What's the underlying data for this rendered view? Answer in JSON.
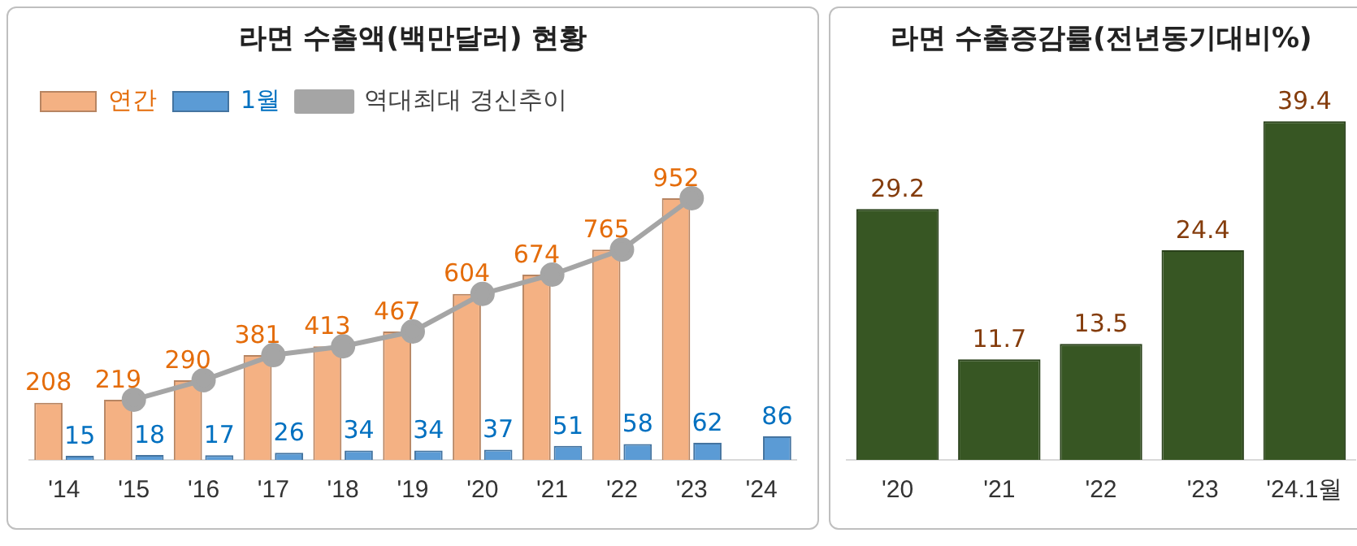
{
  "chart_data": [
    {
      "type": "bar",
      "title": "라면 수출액(백만달러) 현황",
      "categories": [
        "'14",
        "'15",
        "'16",
        "'17",
        "'18",
        "'19",
        "'20",
        "'21",
        "'22",
        "'23",
        "'24"
      ],
      "legend": "top left",
      "tick_labels": "x",
      "marker": "circle",
      "series": [
        {
          "name": "연간",
          "color": "#f4b183",
          "values": [
            208,
            219,
            290,
            381,
            413,
            467,
            604,
            674,
            765,
            952,
            null
          ],
          "value_labels": [
            "208",
            "219",
            "290",
            "381",
            "413",
            "467",
            "604",
            "674",
            "765",
            "952",
            null
          ]
        },
        {
          "name": "1월",
          "color": "#5b9bd5",
          "values": [
            15,
            18,
            17,
            26,
            34,
            34,
            37,
            51,
            58,
            62,
            86
          ],
          "value_labels": [
            "15",
            "18",
            "17",
            "26",
            "34",
            "34",
            "37",
            "51",
            "58",
            "62",
            "86"
          ]
        },
        {
          "name": "역대최대 경신추이",
          "type": "line",
          "color": "#a5a5a5",
          "values": [
            null,
            219,
            290,
            381,
            413,
            467,
            604,
            674,
            765,
            952,
            null
          ]
        }
      ]
    },
    {
      "type": "bar",
      "title": "라면 수출증감률(전년동기대비%)",
      "categories": [
        "'20",
        "'21",
        "'22",
        "'23",
        "'24.1월"
      ],
      "tick_labels": "x",
      "data_labels": true,
      "series": [
        {
          "color": "#375623",
          "values": [
            29.2,
            11.7,
            13.5,
            24.4,
            39.4
          ]
        }
      ]
    }
  ]
}
